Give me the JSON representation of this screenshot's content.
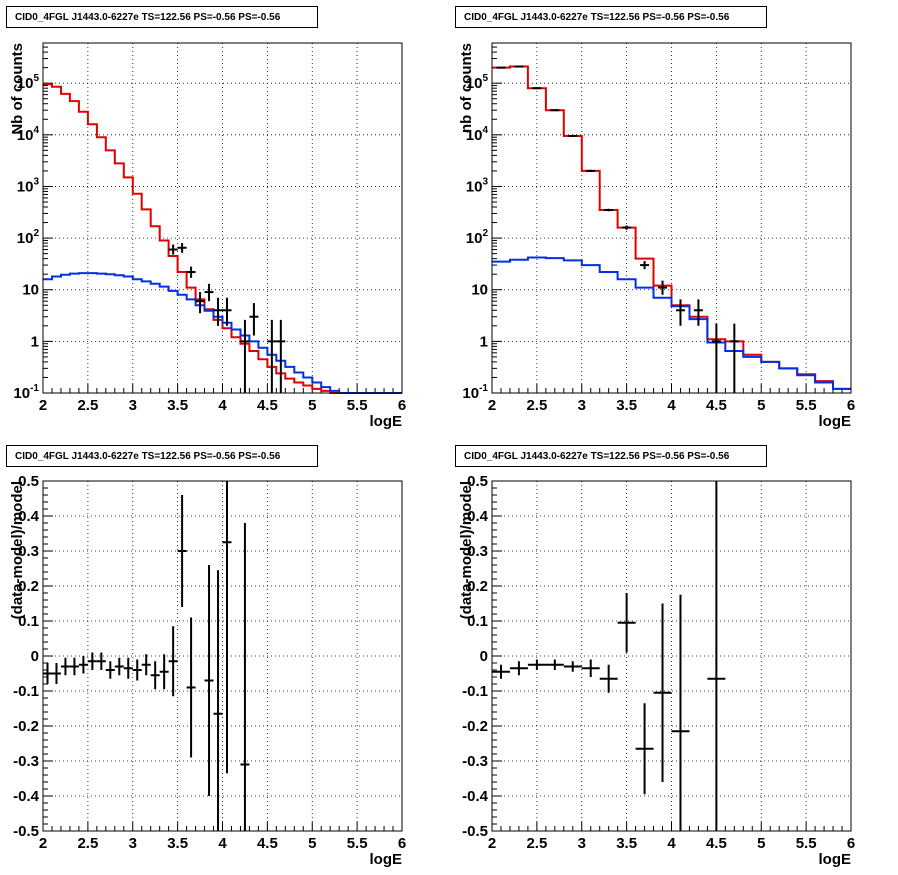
{
  "colors": {
    "data": "#000000",
    "model_total": "#e00000",
    "model_source": "#0030e0",
    "grid": "#000000",
    "background": "#ffffff"
  },
  "panels": [
    {
      "title": "CID0_4FGL J1443.0-6227e TS=122.56 PS=-0.56 PS=-0.56",
      "xlabel": "logE",
      "ylabel": "Nb of counts"
    },
    {
      "title": "CID0_4FGL J1443.0-6227e TS=122.56 PS=-0.56 PS=-0.56",
      "xlabel": "logE",
      "ylabel": "nb of counts"
    },
    {
      "title": "CID0_4FGL J1443.0-6227e TS=122.56 PS=-0.56 PS=-0.56",
      "xlabel": "logE",
      "ylabel": "(data-model)/model"
    },
    {
      "title": "CID0_4FGL J1443.0-6227e TS=122.56 PS=-0.56 PS=-0.56",
      "xlabel": "logE",
      "ylabel": "(data-model)/model"
    }
  ],
  "chart_data": [
    {
      "type": "line",
      "title": "CID0_4FGL J1443.0-6227e TS=122.56 PS=-0.56 PS=-0.56",
      "xlabel": "logE",
      "ylabel": "Nb of counts",
      "xlim": [
        2,
        6
      ],
      "ylim": [
        0.1,
        600000
      ],
      "yscale": "log",
      "grid": true,
      "x_ticks": [
        "2",
        "2.5",
        "3",
        "3.5",
        "4",
        "4.5",
        "5",
        "5.5",
        "6"
      ],
      "y_ticks": [
        "10^-1",
        "1",
        "10",
        "10^2",
        "10^3",
        "10^4",
        "10^5"
      ],
      "bin_edges": [
        2.0,
        2.1,
        2.2,
        2.3,
        2.4,
        2.5,
        2.6,
        2.7,
        2.8,
        2.9,
        3.0,
        3.1,
        3.2,
        3.3,
        3.4,
        3.5,
        3.6,
        3.7,
        3.8,
        3.9,
        4.0,
        4.1,
        4.2,
        4.3,
        4.4,
        4.5,
        4.6,
        4.7,
        4.8,
        4.9,
        5.0,
        5.1,
        5.2,
        5.3,
        5.4,
        5.5,
        5.6,
        5.7,
        5.8,
        5.9,
        6.0
      ],
      "series": [
        {
          "kind": "step",
          "color": "#e00000",
          "values": [
            95000,
            85000,
            62000,
            45000,
            28000,
            16000,
            9000,
            5000,
            2800,
            1500,
            720,
            360,
            170,
            90,
            45,
            22,
            11,
            6.5,
            4.2,
            2.6,
            1.8,
            1.2,
            0.9,
            0.65,
            0.45,
            0.32,
            0.24,
            0.19,
            0.16,
            0.14,
            0.12,
            0.11,
            0.1,
            0.09,
            0.08,
            0.08,
            0.08,
            0.08,
            0.08,
            0.08
          ]
        },
        {
          "kind": "step",
          "color": "#0030e0",
          "values": [
            16,
            18,
            19.5,
            20.5,
            21,
            21,
            20.5,
            20,
            19,
            18,
            16,
            14.5,
            13,
            11.5,
            9.5,
            8,
            6.5,
            5,
            3.9,
            3,
            2.3,
            1.7,
            1.3,
            1.0,
            0.75,
            0.55,
            0.42,
            0.32,
            0.25,
            0.2,
            0.16,
            0.13,
            0.11,
            0.1,
            0.09,
            0.09,
            0.09,
            0.09,
            0.09,
            0.09
          ]
        },
        {
          "kind": "errorbar",
          "color": "#000000",
          "points": [
            {
              "x": 3.45,
              "y": 60,
              "ylo": 48,
              "yhi": 75
            },
            {
              "x": 3.55,
              "y": 65,
              "ylo": 52,
              "yhi": 80
            },
            {
              "x": 3.65,
              "y": 22,
              "ylo": 17,
              "yhi": 28
            },
            {
              "x": 3.75,
              "y": 6,
              "ylo": 3.5,
              "yhi": 9
            },
            {
              "x": 3.85,
              "y": 9,
              "ylo": 6,
              "yhi": 13
            },
            {
              "x": 3.95,
              "y": 4,
              "ylo": 2,
              "yhi": 7
            },
            {
              "x": 4.05,
              "y": 4,
              "ylo": 2,
              "yhi": 7
            },
            {
              "x": 4.15,
              "y": 0.1,
              "ylo": 0.1,
              "yhi": 0.1
            },
            {
              "x": 4.25,
              "y": 1,
              "ylo": 0.1,
              "yhi": 2.6
            },
            {
              "x": 4.35,
              "y": 3,
              "ylo": 1.3,
              "yhi": 5.5
            },
            {
              "x": 4.45,
              "y": 0.1,
              "ylo": 0.1,
              "yhi": 0.1
            },
            {
              "x": 4.55,
              "y": 1,
              "ylo": 0.1,
              "yhi": 2.6
            },
            {
              "x": 4.65,
              "y": 1,
              "ylo": 0.1,
              "yhi": 2.6
            }
          ]
        }
      ]
    },
    {
      "type": "line",
      "title": "CID0_4FGL J1443.0-6227e TS=122.56 PS=-0.56 PS=-0.56",
      "xlabel": "logE",
      "ylabel": "nb of counts",
      "xlim": [
        2,
        6
      ],
      "ylim": [
        0.1,
        600000
      ],
      "yscale": "log",
      "grid": true,
      "x_ticks": [
        "2",
        "2.5",
        "3",
        "3.5",
        "4",
        "4.5",
        "5",
        "5.5",
        "6"
      ],
      "y_ticks": [
        "10^-1",
        "1",
        "10",
        "10^2",
        "10^3",
        "10^4",
        "10^5"
      ],
      "bin_edges": [
        2.0,
        2.2,
        2.4,
        2.6,
        2.8,
        3.0,
        3.2,
        3.4,
        3.6,
        3.8,
        4.0,
        4.2,
        4.4,
        4.6,
        4.8,
        5.0,
        5.2,
        5.4,
        5.6,
        5.8,
        6.0
      ],
      "series": [
        {
          "kind": "step",
          "color": "#e00000",
          "values": [
            200000,
            210000,
            80000,
            30000,
            9500,
            2000,
            350,
            160,
            40,
            12,
            5,
            3,
            1.1,
            1.0,
            0.55,
            0.4,
            0.3,
            0.23,
            0.17,
            0.12
          ]
        },
        {
          "kind": "step",
          "color": "#0030e0",
          "values": [
            35,
            38,
            42,
            41,
            37,
            30,
            22,
            16,
            11,
            7,
            4.8,
            2.7,
            0.95,
            0.65,
            0.5,
            0.4,
            0.3,
            0.22,
            0.16,
            0.12
          ]
        },
        {
          "kind": "errorbar",
          "color": "#000000",
          "points": [
            {
              "x": 2.1,
              "y": 200000,
              "ylo": 196000,
              "yhi": 204000
            },
            {
              "x": 2.3,
              "y": 210000,
              "ylo": 206000,
              "yhi": 214000
            },
            {
              "x": 2.5,
              "y": 80000,
              "ylo": 78000,
              "yhi": 82000
            },
            {
              "x": 2.7,
              "y": 30000,
              "ylo": 29000,
              "yhi": 31000
            },
            {
              "x": 2.9,
              "y": 9500,
              "ylo": 9300,
              "yhi": 9700
            },
            {
              "x": 3.1,
              "y": 2000,
              "ylo": 1900,
              "yhi": 2100
            },
            {
              "x": 3.3,
              "y": 350,
              "ylo": 330,
              "yhi": 370
            },
            {
              "x": 3.5,
              "y": 160,
              "ylo": 145,
              "yhi": 175
            },
            {
              "x": 3.7,
              "y": 30,
              "ylo": 25,
              "yhi": 36
            },
            {
              "x": 3.9,
              "y": 11,
              "ylo": 8,
              "yhi": 15
            },
            {
              "x": 4.1,
              "y": 4,
              "ylo": 2,
              "yhi": 6.5
            },
            {
              "x": 4.3,
              "y": 4,
              "ylo": 2,
              "yhi": 6.5
            },
            {
              "x": 4.5,
              "y": 1,
              "ylo": 0.1,
              "yhi": 2.2
            },
            {
              "x": 4.7,
              "y": 1,
              "ylo": 0.1,
              "yhi": 2.2
            }
          ]
        }
      ]
    },
    {
      "type": "scatter",
      "title": "CID0_4FGL J1443.0-6227e TS=122.56 PS=-0.56 PS=-0.56",
      "xlabel": "logE",
      "ylabel": "(data-model)/model",
      "xlim": [
        2,
        6
      ],
      "ylim": [
        -0.5,
        0.5
      ],
      "grid": true,
      "x_ticks": [
        "2",
        "2.5",
        "3",
        "3.5",
        "4",
        "4.5",
        "5",
        "5.5",
        "6"
      ],
      "y_ticks": [
        "-0.5",
        "-0.4",
        "-0.3",
        "-0.2",
        "-0.1",
        "0",
        "0.1",
        "0.2",
        "0.3",
        "0.4",
        "0.5"
      ],
      "bin_half_width": 0.05,
      "series": [
        {
          "kind": "errorbar",
          "color": "#000000",
          "points": [
            {
              "x": 2.05,
              "y": -0.05,
              "yerr": 0.03
            },
            {
              "x": 2.15,
              "y": -0.05,
              "yerr": 0.03
            },
            {
              "x": 2.25,
              "y": -0.03,
              "yerr": 0.025
            },
            {
              "x": 2.35,
              "y": -0.03,
              "yerr": 0.025
            },
            {
              "x": 2.45,
              "y": -0.025,
              "yerr": 0.025
            },
            {
              "x": 2.55,
              "y": -0.015,
              "yerr": 0.025
            },
            {
              "x": 2.65,
              "y": -0.015,
              "yerr": 0.025
            },
            {
              "x": 2.75,
              "y": -0.04,
              "yerr": 0.025
            },
            {
              "x": 2.85,
              "y": -0.03,
              "yerr": 0.025
            },
            {
              "x": 2.95,
              "y": -0.035,
              "yerr": 0.03
            },
            {
              "x": 3.05,
              "y": -0.04,
              "yerr": 0.03
            },
            {
              "x": 3.15,
              "y": -0.025,
              "yerr": 0.03
            },
            {
              "x": 3.25,
              "y": -0.055,
              "yerr": 0.04
            },
            {
              "x": 3.35,
              "y": -0.045,
              "yerr": 0.05
            },
            {
              "x": 3.45,
              "y": -0.015,
              "yerr": 0.1
            },
            {
              "x": 3.55,
              "y": 0.3,
              "yerr": 0.16
            },
            {
              "x": 3.65,
              "y": -0.09,
              "yerr": 0.2
            },
            {
              "x": 3.85,
              "y": -0.07,
              "yerr": 0.33
            },
            {
              "x": 3.95,
              "y": -0.165,
              "yerr": 0.41
            },
            {
              "x": 4.05,
              "y": 0.325,
              "yerr": 0.66
            },
            {
              "x": 4.25,
              "y": -0.31,
              "yerr": 0.69
            }
          ]
        }
      ]
    },
    {
      "type": "scatter",
      "title": "CID0_4FGL J1443.0-6227e TS=122.56 PS=-0.56 PS=-0.56",
      "xlabel": "logE",
      "ylabel": "(data-model)/model",
      "xlim": [
        2,
        6
      ],
      "ylim": [
        -0.5,
        0.5
      ],
      "grid": true,
      "x_ticks": [
        "2",
        "2.5",
        "3",
        "3.5",
        "4",
        "4.5",
        "5",
        "5.5",
        "6"
      ],
      "y_ticks": [
        "-0.5",
        "-0.4",
        "-0.3",
        "-0.2",
        "-0.1",
        "0",
        "0.1",
        "0.2",
        "0.3",
        "0.4",
        "0.5"
      ],
      "bin_half_width": 0.1,
      "series": [
        {
          "kind": "errorbar",
          "color": "#000000",
          "points": [
            {
              "x": 2.1,
              "y": -0.045,
              "yerr": 0.02
            },
            {
              "x": 2.3,
              "y": -0.035,
              "yerr": 0.02
            },
            {
              "x": 2.5,
              "y": -0.025,
              "yerr": 0.015
            },
            {
              "x": 2.7,
              "y": -0.025,
              "yerr": 0.015
            },
            {
              "x": 2.9,
              "y": -0.03,
              "yerr": 0.015
            },
            {
              "x": 3.1,
              "y": -0.035,
              "yerr": 0.025
            },
            {
              "x": 3.3,
              "y": -0.065,
              "yerr": 0.04
            },
            {
              "x": 3.5,
              "y": 0.095,
              "yerr": 0.085
            },
            {
              "x": 3.7,
              "y": -0.265,
              "yerr": 0.13
            },
            {
              "x": 3.9,
              "y": -0.105,
              "yerr": 0.255
            },
            {
              "x": 4.1,
              "y": -0.215,
              "yerr": 0.39
            },
            {
              "x": 4.5,
              "y": -0.065,
              "yerr": 0.6
            }
          ]
        }
      ]
    }
  ]
}
